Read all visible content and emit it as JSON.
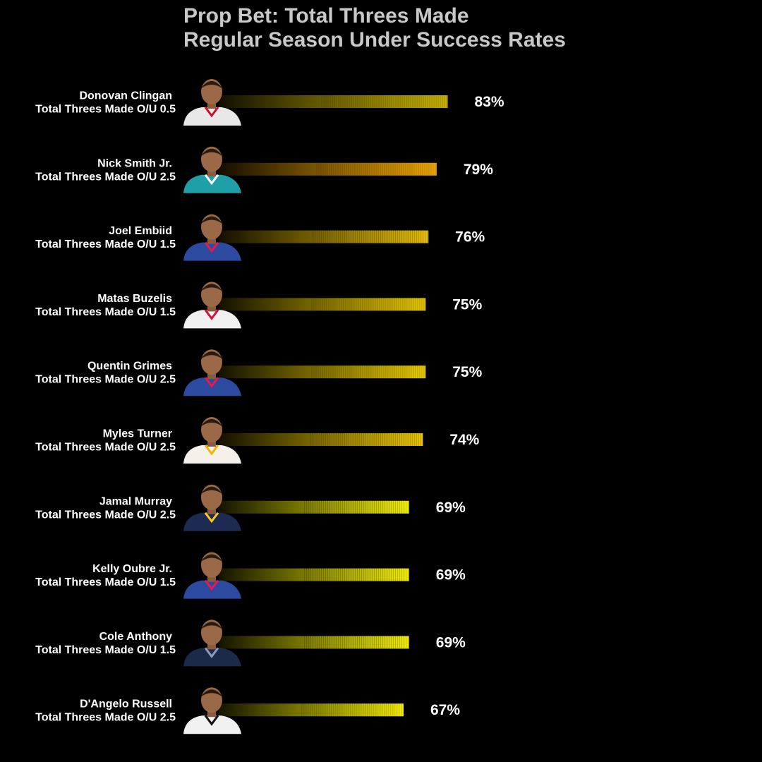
{
  "chart_data": {
    "type": "bar",
    "orientation": "horizontal",
    "title": "Prop Bet: Total Threes Made",
    "subtitle": "Regular Season Under Success Rates",
    "xlabel": "",
    "ylabel": "",
    "xlim": [
      0,
      100
    ],
    "grid": false,
    "legend": "none",
    "value_suffix": "%",
    "categories": [
      {
        "name": "Donovan Clingan",
        "line": "Total Threes Made O/U 0.5"
      },
      {
        "name": "Nick Smith Jr.",
        "line": "Total Threes Made O/U 2.5"
      },
      {
        "name": "Joel Embiid",
        "line": "Total Threes Made O/U 1.5"
      },
      {
        "name": "Matas Buzelis",
        "line": "Total Threes Made O/U 1.5"
      },
      {
        "name": "Quentin Grimes",
        "line": "Total Threes Made O/U 2.5"
      },
      {
        "name": "Myles Turner",
        "line": "Total Threes Made O/U 2.5"
      },
      {
        "name": "Jamal Murray",
        "line": "Total Threes Made O/U 2.5"
      },
      {
        "name": "Kelly Oubre Jr.",
        "line": "Total Threes Made O/U 1.5"
      },
      {
        "name": "Cole Anthony",
        "line": "Total Threes Made O/U 1.5"
      },
      {
        "name": "D'Angelo Russell",
        "line": "Total Threes Made O/U 2.5"
      }
    ],
    "values": [
      83,
      79,
      76,
      75,
      75,
      74,
      69,
      69,
      69,
      67
    ],
    "bar_colors": [
      "#cbb400",
      "#f2a800",
      "#e6bd00",
      "#e8c800",
      "#ebcd00",
      "#ecc700",
      "#f4f000",
      "#f2ee00",
      "#f2ee00",
      "#f6f000"
    ],
    "jersey_colors": [
      "#e8e8e8",
      "#1f9fa8",
      "#2b4aa0",
      "#f0f0f0",
      "#2b4aa0",
      "#f4f1ea",
      "#1d2a52",
      "#2b4aa0",
      "#1c2a4a",
      "#f0f0f0"
    ],
    "jersey_trim": [
      "#c8102e",
      "#ffffff",
      "#ed174c",
      "#ce1141",
      "#ed174c",
      "#f7b500",
      "#fec524",
      "#ed174c",
      "#8a9cc0",
      "#111111"
    ]
  }
}
